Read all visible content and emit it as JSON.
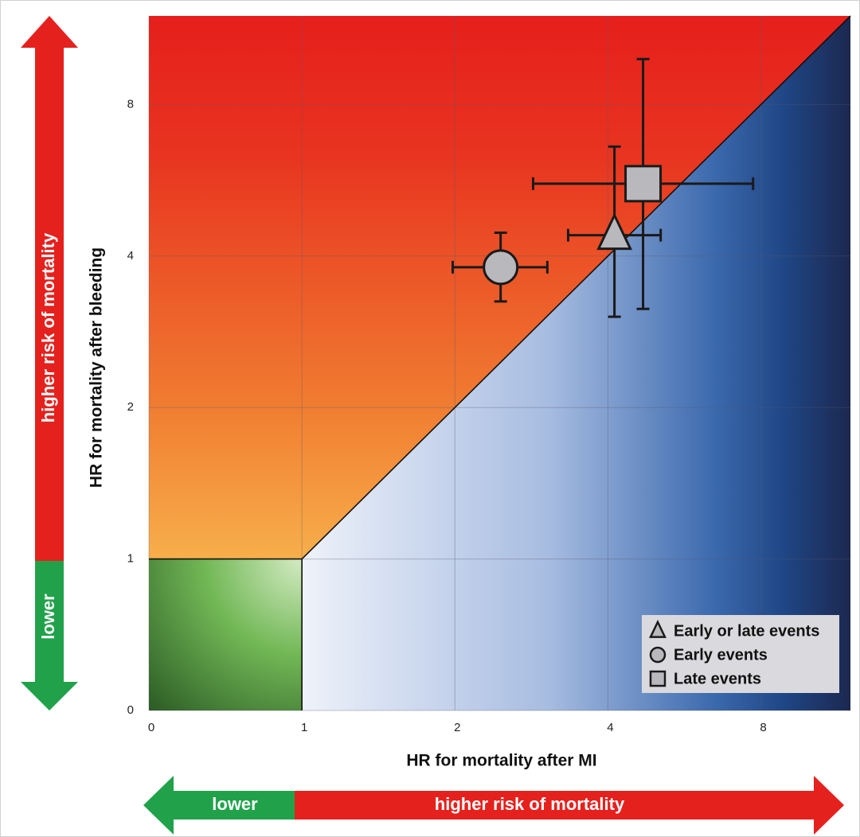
{
  "chart_data": {
    "type": "scatter",
    "x_label": "HR for mortality after MI",
    "y_label": "HR for mortality after bleeding",
    "log_base": 2,
    "xlim": [
      0.5,
      12
    ],
    "ylim": [
      0.5,
      12
    ],
    "xticks": [
      {
        "value": 0.5,
        "label": "0"
      },
      1,
      2,
      4,
      8
    ],
    "yticks": [
      {
        "value": 0.5,
        "label": "0"
      },
      1,
      2,
      4,
      8
    ],
    "grid": true,
    "legend": "lower right",
    "x_arrow": {
      "low": "lower",
      "high": "higher risk of mortality"
    },
    "y_arrow": {
      "low": "lower",
      "high": "higher risk of mortality"
    },
    "series": [
      {
        "name": "Early or late events",
        "marker": "triangle",
        "color": "#b9b9bd",
        "x": [
          4.12
        ],
        "y": [
          4.4
        ],
        "xlow": [
          3.34
        ],
        "xhigh": [
          5.08
        ],
        "ylow": [
          3.03
        ],
        "yhigh": [
          6.6
        ]
      },
      {
        "name": "Early events",
        "marker": "circle",
        "color": "#b9b9bd",
        "x": [
          2.46
        ],
        "y": [
          3.8
        ],
        "xlow": [
          1.98
        ],
        "xhigh": [
          3.04
        ],
        "ylow": [
          3.25
        ],
        "yhigh": [
          4.45
        ]
      },
      {
        "name": "Late events",
        "marker": "square",
        "color": "#b9b9bd",
        "x": [
          4.69
        ],
        "y": [
          5.57
        ],
        "xlow": [
          2.85
        ],
        "xhigh": [
          7.72
        ],
        "ylow": [
          3.14
        ],
        "yhigh": [
          9.85
        ]
      }
    ]
  }
}
